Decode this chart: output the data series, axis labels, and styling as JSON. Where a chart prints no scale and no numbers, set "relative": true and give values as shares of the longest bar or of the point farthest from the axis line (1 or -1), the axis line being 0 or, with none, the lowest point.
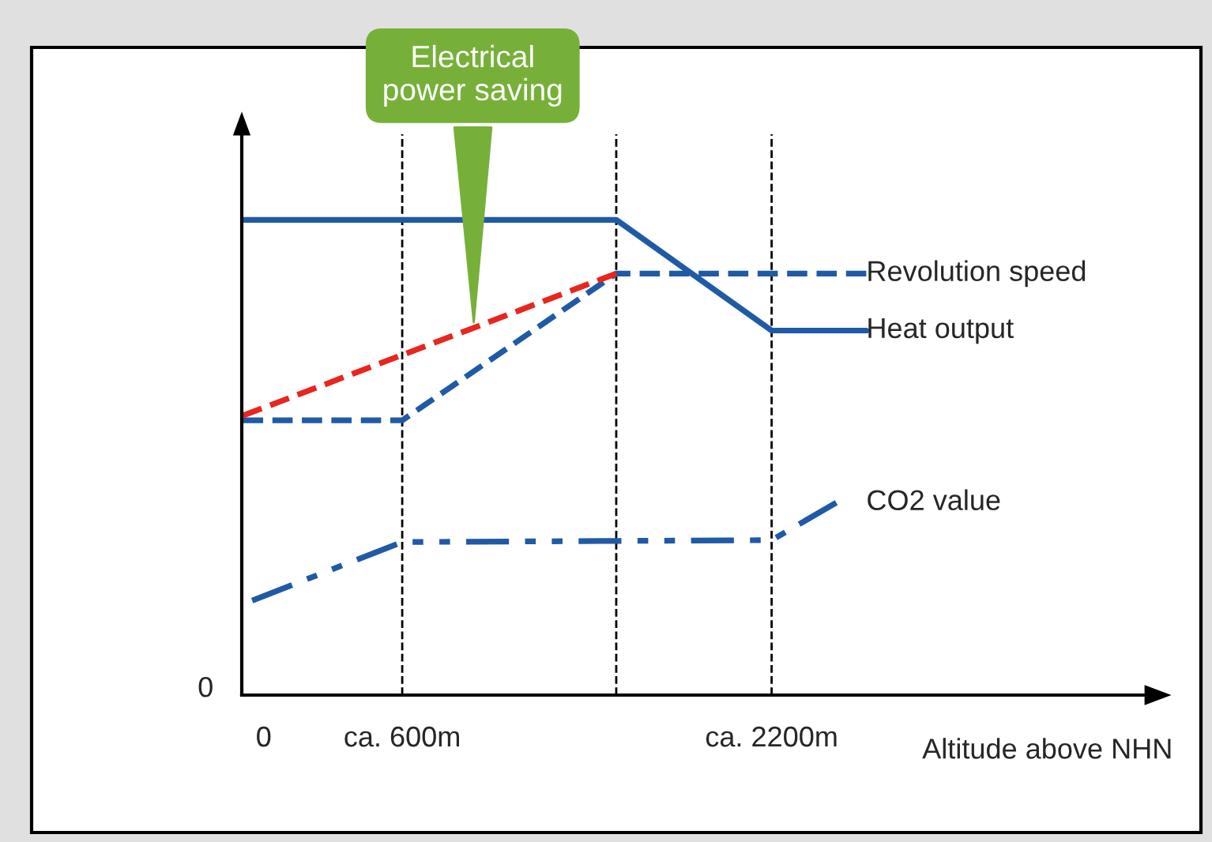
{
  "chart_data": {
    "type": "line",
    "relative": true,
    "xlabel": "Altitude above NHN",
    "xlim": [
      -95,
      3820
    ],
    "xticks": [
      {
        "value": 0,
        "label": "0"
      },
      {
        "value": 600,
        "label": "ca. 600m"
      },
      {
        "value": 2200,
        "label": "ca. 2200m"
      }
    ],
    "series": [
      {
        "name": "Revolution speed",
        "color": "#1f5aa6",
        "line_style": "dashed",
        "x": [
          -90,
          600,
          1527,
          2610
        ],
        "values": [
          0.578,
          0.578,
          0.887,
          0.887
        ]
      },
      {
        "name": "Heat output",
        "color": "#1f5aa6",
        "line_style": "solid",
        "x": [
          -90,
          1527,
          2200,
          2610
        ],
        "values": [
          1,
          1,
          0.767,
          0.767
        ]
      },
      {
        "color": "#e8251f",
        "line_style": "dashed",
        "x": [
          -90,
          1527
        ],
        "values": [
          0.588,
          0.887
        ]
      },
      {
        "name": "CO2 value",
        "color": "#1f5aa6",
        "line_style": "dashdot",
        "x": [
          -50,
          600,
          2200,
          2480
        ],
        "values": [
          0.199,
          0.322,
          0.326,
          0.405
        ]
      }
    ],
    "ref_lines": [
      {
        "axis": "x",
        "value": 600,
        "color": "#000000",
        "line_style": "dashed"
      },
      {
        "axis": "x",
        "value": 1527,
        "color": "#000000",
        "line_style": "dashed"
      },
      {
        "axis": "x",
        "value": 2200,
        "color": "#000000",
        "line_style": "dashed"
      }
    ],
    "annotations": [
      {
        "text": "Electrical\npower saving",
        "x": 910,
        "y": 0.775
      },
      "0"
    ],
    "grid": false
  }
}
